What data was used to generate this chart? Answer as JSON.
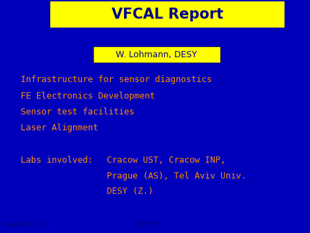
{
  "background_color": "#0000BB",
  "title_text": "VFCAL Report",
  "title_bg_color": "#FFFF00",
  "title_text_color": "#00008B",
  "title_font_size": 15,
  "subtitle_text": "W. Lohmann, DESY",
  "subtitle_bg_color": "#FFFF00",
  "subtitle_border_color": "#000080",
  "subtitle_text_color": "#00008B",
  "subtitle_font_size": 9,
  "bullet_color": "#FF8C00",
  "bullet_font_size": 9,
  "bullets": [
    "Infrastructure for sensor diagnostics",
    "FE Electronics Development",
    "Sensor test facilities",
    "Laser Alignment"
  ],
  "labs_label": "Labs involved:",
  "labs_lines": [
    "Cracow UST, Cracow INP,",
    "Prague (AS), Tel Aviv Univ.",
    "DESY (Z.)"
  ],
  "footer_left": "August 27, 2007",
  "footer_right": "DESY-HH",
  "footer_color": "#00006B",
  "footer_font_size": 5.5
}
